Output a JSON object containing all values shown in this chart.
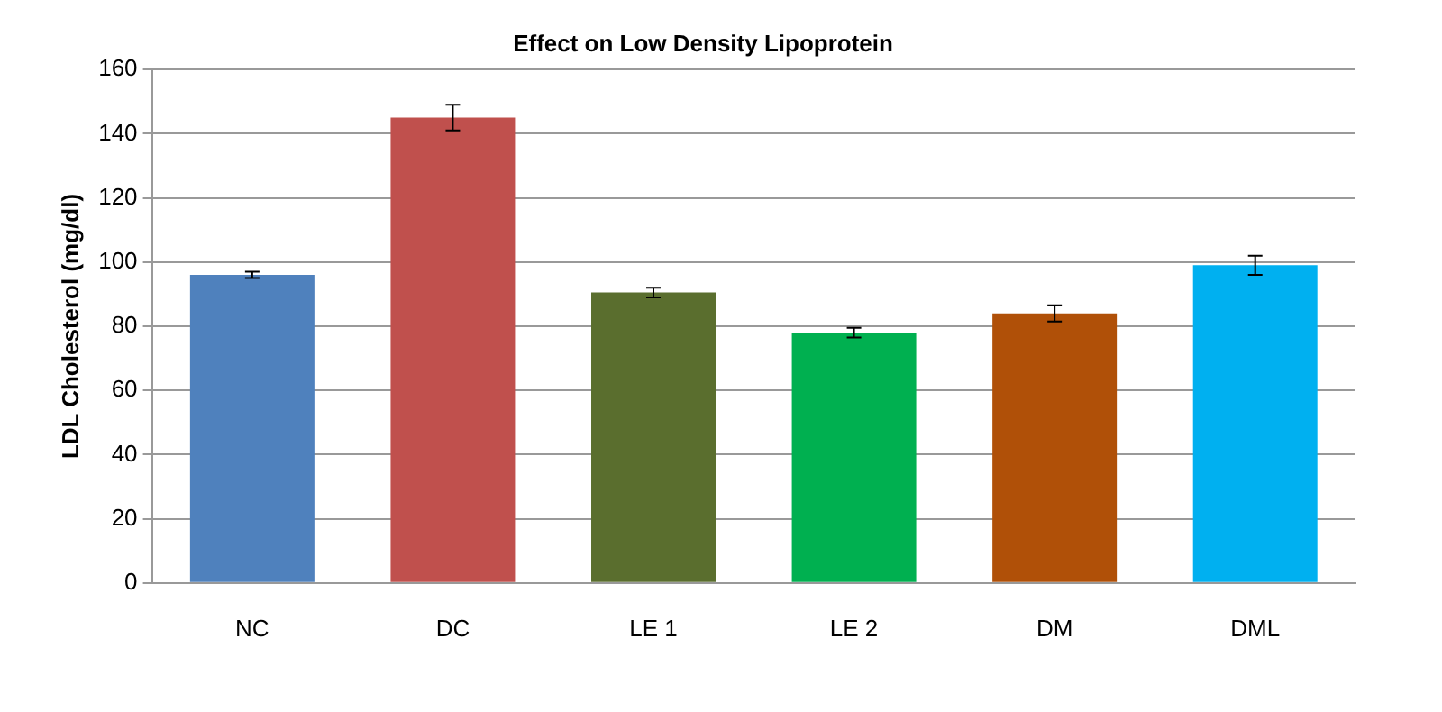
{
  "chart_data": {
    "type": "bar",
    "title": "Effect on Low Density Lipoprotein",
    "ylabel": "LDL Cholesterol (mg/dl)",
    "categories": [
      "NC",
      "DC",
      "LE 1",
      "LE 2",
      "DM",
      "DML"
    ],
    "values": [
      96,
      145,
      90.5,
      78,
      84,
      99
    ],
    "errors": [
      1,
      4,
      1.5,
      1.5,
      2.5,
      3
    ],
    "colors": [
      "#4f81bd",
      "#c0504d",
      "#5a6e2e",
      "#00b050",
      "#b05008",
      "#00b0f0"
    ],
    "ylim": [
      0,
      160
    ],
    "yticks": [
      0,
      20,
      40,
      60,
      80,
      100,
      120,
      140,
      160
    ],
    "grid": "y",
    "legend": false
  }
}
